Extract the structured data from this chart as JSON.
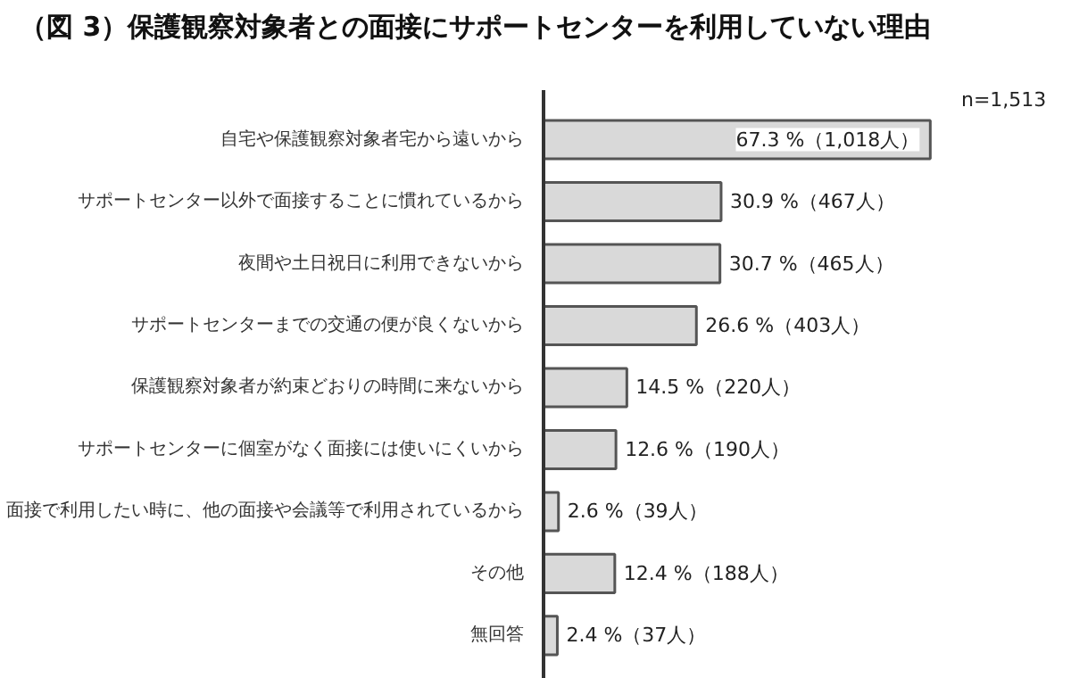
{
  "chart_data": {
    "type": "bar",
    "orientation": "horizontal",
    "title": "（図 3）保護観察対象者との面接にサポートセンターを利用していない理由",
    "categories": [
      "自宅や保護観察対象者宅から遠いから",
      "サポートセンター以外で面接することに慣れているから",
      "夜間や土日祝日に利用できないから",
      "サポートセンターまでの交通の便が良くないから",
      "保護観察対象者が約束どおりの時間に来ないから",
      "サポートセンターに個室がなく面接には使いにくいから",
      "面接で利用したい時に、他の面接や会議等で利用されているから",
      "その他",
      "無回答"
    ],
    "values": [
      67.3,
      30.9,
      30.7,
      26.6,
      14.5,
      12.6,
      2.6,
      12.4,
      2.4
    ],
    "value_labels": [
      "67.3 %（1,018人）",
      "30.9 %（467人）",
      "30.7 %（465人）",
      "26.6 %（403人）",
      "14.5 %（220人）",
      "12.6 %（190人）",
      "2.6 %（39人）",
      "12.4 %（188人）",
      "2.4 %（37人）"
    ],
    "color": "#d9d9d9",
    "annotations": [
      "n=1,513"
    ],
    "grid": false
  }
}
